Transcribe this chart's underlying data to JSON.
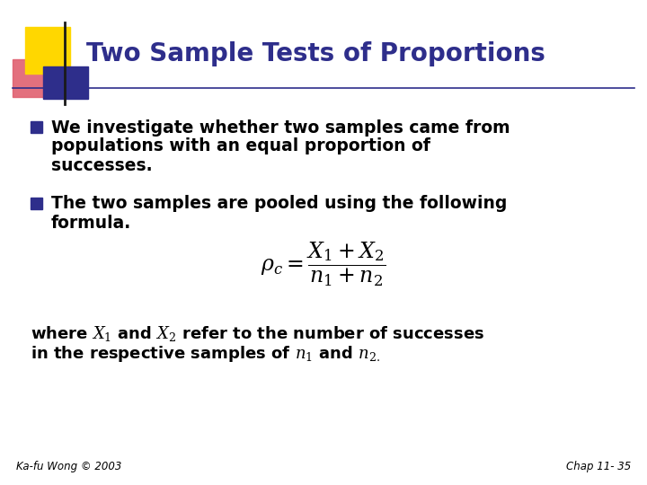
{
  "title": "Two Sample Tests of Proportions",
  "title_color": "#2E2E8B",
  "background_color": "#FFFFFF",
  "bullet_color": "#2E2E8B",
  "text_color": "#000000",
  "bullet1_line1": "We investigate whether two samples came from",
  "bullet1_line2": "populations with an equal proportion of",
  "bullet1_line3": "successes.",
  "bullet2_line1": "The two samples are pooled using the following",
  "bullet2_line2": "formula.",
  "footer_left": "Ka-fu Wong © 2003",
  "footer_right": "Chap 11- 35",
  "header_line_color": "#2E2E8B",
  "square_yellow": "#FFD700",
  "square_red": "#E06070",
  "square_blue": "#2E2E8B",
  "vertical_line_color": "#1A1A1A",
  "fig_width": 7.2,
  "fig_height": 5.4,
  "dpi": 100
}
